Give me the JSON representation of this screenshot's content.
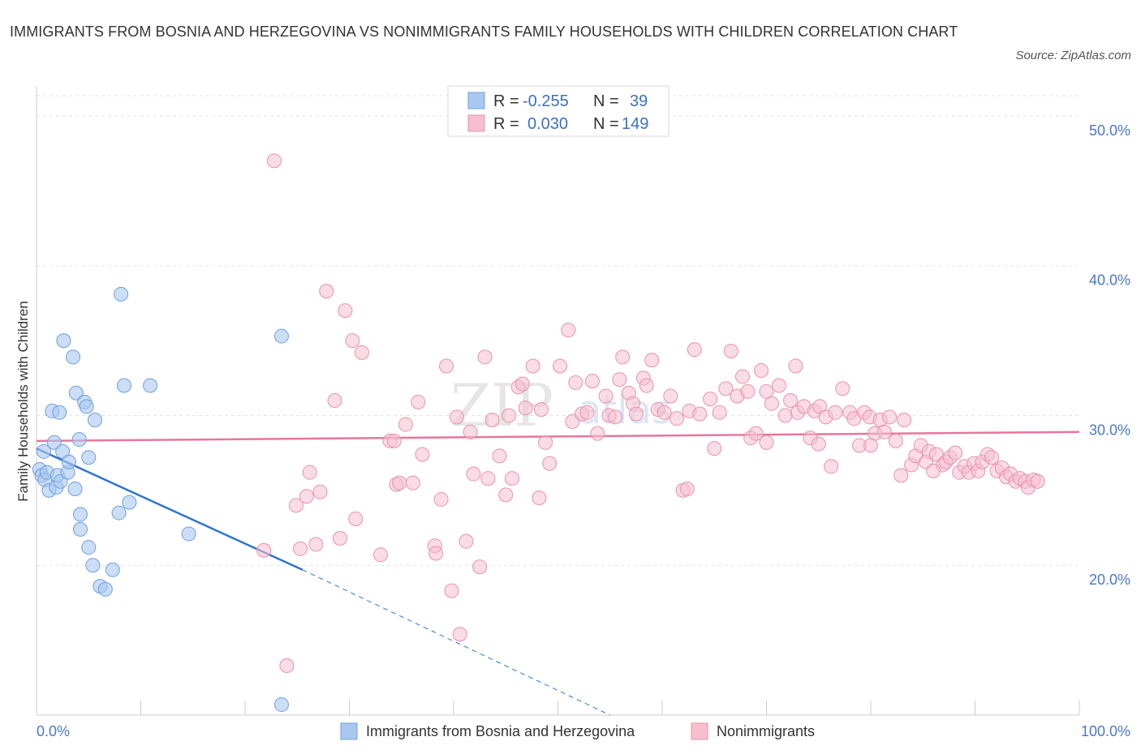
{
  "header": {
    "title": "IMMIGRANTS FROM BOSNIA AND HERZEGOVINA VS NONIMMIGRANTS FAMILY HOUSEHOLDS WITH CHILDREN CORRELATION CHART",
    "source": "Source: ZipAtlas.com"
  },
  "watermark": {
    "zip": "ZIP",
    "atlas": "atlas"
  },
  "legend": {
    "series1": {
      "r_label": "R =",
      "r_value": "-0.255",
      "n_label": "N =",
      "n_value": "39"
    },
    "series2": {
      "r_label": "R =",
      "r_value": "0.030",
      "n_label": "N =",
      "n_value": "149"
    }
  },
  "colors": {
    "blue_fill": "#a9c8f0",
    "blue_stroke": "#6f9fdc",
    "blue_line": "#2f74d0",
    "pink_fill": "#f6bfd0",
    "pink_stroke": "#e792ae",
    "pink_line": "#e8769a",
    "grid": "#e3e3e3",
    "axis": "#cccccc"
  },
  "chart_data": {
    "type": "scatter",
    "title": "IMMIGRANTS FROM BOSNIA AND HERZEGOVINA VS NONIMMIGRANTS FAMILY HOUSEHOLDS WITH CHILDREN CORRELATION CHART",
    "xlabel": "",
    "ylabel": "Family Households with Children",
    "xlim": [
      0,
      100
    ],
    "ylim": [
      10,
      52
    ],
    "x_tick_labels": [
      "0.0%",
      "100.0%"
    ],
    "y_ticks": [
      20,
      30,
      40,
      50
    ],
    "y_tick_labels": [
      "20.0%",
      "30.0%",
      "40.0%",
      "50.0%"
    ],
    "grid": true,
    "legend_position": "top-center",
    "series": [
      {
        "name": "Immigrants from Bosnia and Herzegovina",
        "color": "#a9c8f0",
        "R": -0.255,
        "N": 39,
        "trend": {
          "x0": 0,
          "y0": 27.8,
          "x1": 25.5,
          "y1": 19.7,
          "dash_to_x": 55,
          "dash_to_y": 10
        },
        "points": [
          [
            0.3,
            26.4
          ],
          [
            0.5,
            26.0
          ],
          [
            0.7,
            27.6
          ],
          [
            0.8,
            25.7
          ],
          [
            1.0,
            26.2
          ],
          [
            1.2,
            25.0
          ],
          [
            1.5,
            30.3
          ],
          [
            1.7,
            28.2
          ],
          [
            1.9,
            25.2
          ],
          [
            2.0,
            26.0
          ],
          [
            2.2,
            30.2
          ],
          [
            2.3,
            25.6
          ],
          [
            2.5,
            27.6
          ],
          [
            2.6,
            35.0
          ],
          [
            3.0,
            26.2
          ],
          [
            3.1,
            26.9
          ],
          [
            3.5,
            33.9
          ],
          [
            3.7,
            25.1
          ],
          [
            3.8,
            31.5
          ],
          [
            4.1,
            28.4
          ],
          [
            4.2,
            23.4
          ],
          [
            4.2,
            22.4
          ],
          [
            4.6,
            30.9
          ],
          [
            4.8,
            30.6
          ],
          [
            5.0,
            21.2
          ],
          [
            5.4,
            20.0
          ],
          [
            5.6,
            29.7
          ],
          [
            6.1,
            18.6
          ],
          [
            6.6,
            18.4
          ],
          [
            7.3,
            19.7
          ],
          [
            7.9,
            23.5
          ],
          [
            8.1,
            38.1
          ],
          [
            8.4,
            32.0
          ],
          [
            8.9,
            24.2
          ],
          [
            10.9,
            32.0
          ],
          [
            14.6,
            22.1
          ],
          [
            23.5,
            35.3
          ],
          [
            23.5,
            10.7
          ],
          [
            5.0,
            27.2
          ]
        ]
      },
      {
        "name": "Nonimmigrants",
        "color": "#f6bfd0",
        "R": 0.03,
        "N": 149,
        "trend": {
          "x0": 0,
          "y0": 28.3,
          "x1": 100,
          "y1": 28.9
        },
        "points": [
          [
            21.8,
            21.0
          ],
          [
            22.8,
            47.0
          ],
          [
            24.0,
            13.3
          ],
          [
            24.9,
            24.0
          ],
          [
            25.3,
            21.1
          ],
          [
            25.9,
            24.6
          ],
          [
            26.2,
            26.2
          ],
          [
            26.8,
            21.4
          ],
          [
            27.2,
            24.9
          ],
          [
            27.8,
            38.3
          ],
          [
            28.6,
            31.0
          ],
          [
            29.1,
            21.8
          ],
          [
            29.6,
            37.0
          ],
          [
            30.3,
            35.0
          ],
          [
            30.6,
            23.1
          ],
          [
            31.2,
            34.2
          ],
          [
            33.0,
            20.7
          ],
          [
            33.9,
            28.3
          ],
          [
            34.3,
            28.3
          ],
          [
            34.5,
            25.4
          ],
          [
            34.8,
            25.5
          ],
          [
            35.4,
            29.4
          ],
          [
            36.1,
            25.5
          ],
          [
            36.6,
            30.9
          ],
          [
            37.0,
            27.4
          ],
          [
            38.2,
            21.3
          ],
          [
            38.3,
            20.8
          ],
          [
            38.8,
            24.4
          ],
          [
            39.3,
            33.3
          ],
          [
            39.8,
            18.3
          ],
          [
            40.3,
            29.9
          ],
          [
            40.6,
            15.4
          ],
          [
            41.2,
            21.6
          ],
          [
            41.6,
            28.9
          ],
          [
            41.9,
            26.1
          ],
          [
            42.5,
            19.9
          ],
          [
            43.0,
            33.9
          ],
          [
            43.3,
            25.8
          ],
          [
            43.7,
            29.7
          ],
          [
            44.4,
            27.3
          ],
          [
            45.0,
            24.7
          ],
          [
            45.3,
            30.0
          ],
          [
            45.6,
            25.8
          ],
          [
            46.2,
            31.9
          ],
          [
            46.6,
            32.1
          ],
          [
            46.9,
            30.5
          ],
          [
            47.6,
            33.3
          ],
          [
            48.2,
            24.5
          ],
          [
            48.4,
            30.4
          ],
          [
            48.8,
            28.2
          ],
          [
            49.2,
            26.8
          ],
          [
            50.2,
            33.3
          ],
          [
            51.0,
            35.7
          ],
          [
            51.4,
            29.6
          ],
          [
            51.7,
            32.2
          ],
          [
            52.3,
            30.1
          ],
          [
            52.8,
            30.2
          ],
          [
            53.3,
            32.3
          ],
          [
            53.8,
            28.8
          ],
          [
            54.6,
            31.3
          ],
          [
            54.9,
            30.0
          ],
          [
            55.5,
            29.9
          ],
          [
            55.9,
            32.4
          ],
          [
            56.2,
            33.9
          ],
          [
            56.8,
            31.5
          ],
          [
            57.2,
            30.8
          ],
          [
            57.5,
            30.1
          ],
          [
            58.2,
            32.5
          ],
          [
            58.5,
            32.0
          ],
          [
            59.0,
            33.7
          ],
          [
            59.6,
            30.4
          ],
          [
            60.2,
            30.2
          ],
          [
            60.8,
            31.3
          ],
          [
            61.4,
            29.8
          ],
          [
            62.0,
            25.0
          ],
          [
            62.4,
            25.1
          ],
          [
            62.6,
            30.3
          ],
          [
            63.1,
            34.4
          ],
          [
            63.6,
            30.1
          ],
          [
            64.6,
            31.1
          ],
          [
            65.0,
            27.8
          ],
          [
            65.5,
            30.2
          ],
          [
            66.1,
            31.8
          ],
          [
            66.6,
            34.3
          ],
          [
            67.2,
            31.3
          ],
          [
            67.7,
            32.6
          ],
          [
            68.2,
            31.6
          ],
          [
            68.5,
            28.5
          ],
          [
            69.0,
            28.8
          ],
          [
            69.5,
            33.0
          ],
          [
            70.0,
            31.6
          ],
          [
            70.5,
            30.8
          ],
          [
            71.2,
            32.0
          ],
          [
            71.8,
            30.0
          ],
          [
            72.3,
            31.0
          ],
          [
            72.8,
            33.3
          ],
          [
            73.0,
            30.2
          ],
          [
            73.6,
            30.6
          ],
          [
            74.2,
            28.5
          ],
          [
            74.6,
            30.3
          ],
          [
            75.1,
            30.6
          ],
          [
            75.7,
            29.9
          ],
          [
            76.2,
            26.6
          ],
          [
            76.6,
            30.2
          ],
          [
            77.3,
            31.8
          ],
          [
            78.0,
            30.2
          ],
          [
            78.4,
            29.8
          ],
          [
            78.9,
            28.0
          ],
          [
            79.4,
            30.2
          ],
          [
            79.9,
            29.9
          ],
          [
            80.4,
            28.8
          ],
          [
            80.9,
            29.7
          ],
          [
            81.3,
            28.9
          ],
          [
            81.8,
            29.9
          ],
          [
            82.4,
            28.3
          ],
          [
            82.9,
            26.0
          ],
          [
            83.2,
            29.7
          ],
          [
            83.9,
            26.7
          ],
          [
            84.3,
            27.3
          ],
          [
            84.8,
            28.0
          ],
          [
            85.3,
            26.9
          ],
          [
            85.6,
            27.6
          ],
          [
            86.3,
            27.4
          ],
          [
            86.9,
            26.7
          ],
          [
            87.2,
            26.9
          ],
          [
            87.6,
            27.2
          ],
          [
            88.1,
            27.5
          ],
          [
            88.5,
            26.2
          ],
          [
            89.0,
            26.6
          ],
          [
            89.4,
            26.2
          ],
          [
            89.9,
            26.8
          ],
          [
            90.3,
            26.3
          ],
          [
            90.7,
            26.9
          ],
          [
            91.2,
            27.4
          ],
          [
            91.6,
            27.2
          ],
          [
            92.1,
            26.3
          ],
          [
            92.6,
            26.5
          ],
          [
            93.0,
            25.9
          ],
          [
            93.4,
            26.1
          ],
          [
            93.9,
            25.6
          ],
          [
            94.3,
            25.8
          ],
          [
            94.8,
            25.6
          ],
          [
            95.1,
            25.2
          ],
          [
            95.6,
            25.7
          ],
          [
            96.0,
            25.6
          ],
          [
            86.0,
            26.3
          ],
          [
            80.0,
            28.0
          ],
          [
            75.0,
            28.1
          ],
          [
            70.0,
            28.2
          ]
        ]
      }
    ]
  },
  "bottom_legend": {
    "series1": "Immigrants from Bosnia and Herzegovina",
    "series2": "Nonimmigrants"
  }
}
